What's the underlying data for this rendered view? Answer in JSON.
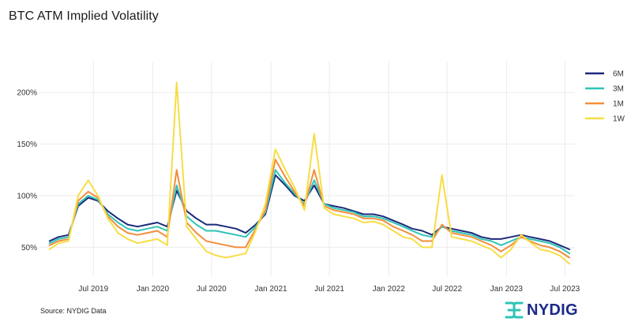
{
  "title": "BTC ATM Implied Volatility",
  "source_note": "Source: NYDIG Data",
  "logo": {
    "text": "NYDIG",
    "icon": "nydig-logo-icon"
  },
  "colors": {
    "6M": "#1b2a7a",
    "3M": "#2ec4b6",
    "1M": "#f28e3c",
    "1W": "#f7dd45",
    "grid": "#ebebeb",
    "logo_icon": "#2ec4b6",
    "logo_text": "#1b2a8a"
  },
  "chart_data": {
    "type": "line",
    "title": "BTC ATM Implied Volatility",
    "xlabel": "",
    "ylabel": "",
    "y_unit": "%",
    "ylim": [
      22,
      230
    ],
    "xlim": [
      "2019-01-15",
      "2023-08-01"
    ],
    "x_ticks": [
      {
        "label": "Jul 2019",
        "date": "2019-07-01"
      },
      {
        "label": "Jan 2020",
        "date": "2020-01-01"
      },
      {
        "label": "Jul 2020",
        "date": "2020-07-01"
      },
      {
        "label": "Jan 2021",
        "date": "2021-01-01"
      },
      {
        "label": "Jul 2021",
        "date": "2021-07-01"
      },
      {
        "label": "Jan 2022",
        "date": "2022-01-01"
      },
      {
        "label": "Jul 2022",
        "date": "2022-07-01"
      },
      {
        "label": "Jan 2023",
        "date": "2023-01-01"
      },
      {
        "label": "Jul 2023",
        "date": "2023-07-01"
      }
    ],
    "y_ticks": [
      {
        "label": "50%",
        "value": 50
      },
      {
        "label": "100%",
        "value": 100
      },
      {
        "label": "150%",
        "value": 150
      },
      {
        "label": "200%",
        "value": 200
      }
    ],
    "legend": {
      "position": "right",
      "entries": [
        "6M",
        "3M",
        "1M",
        "1W"
      ]
    },
    "x": [
      "2019-02",
      "2019-03",
      "2019-04",
      "2019-05",
      "2019-06",
      "2019-07",
      "2019-08",
      "2019-09",
      "2019-10",
      "2019-11",
      "2019-12",
      "2020-01",
      "2020-02",
      "2020-03",
      "2020-04",
      "2020-05",
      "2020-06",
      "2020-07",
      "2020-08",
      "2020-09",
      "2020-10",
      "2020-11",
      "2020-12",
      "2021-01",
      "2021-02",
      "2021-03",
      "2021-04",
      "2021-05",
      "2021-06",
      "2021-07",
      "2021-08",
      "2021-09",
      "2021-10",
      "2021-11",
      "2021-12",
      "2022-01",
      "2022-02",
      "2022-03",
      "2022-04",
      "2022-05",
      "2022-06",
      "2022-07",
      "2022-08",
      "2022-09",
      "2022-10",
      "2022-11",
      "2022-12",
      "2023-01",
      "2023-02",
      "2023-03",
      "2023-04",
      "2023-05",
      "2023-06",
      "2023-07"
    ],
    "series": [
      {
        "name": "6M",
        "values": [
          56,
          60,
          62,
          90,
          98,
          95,
          85,
          78,
          72,
          70,
          72,
          74,
          70,
          105,
          85,
          78,
          72,
          72,
          70,
          68,
          64,
          72,
          82,
          120,
          110,
          100,
          95,
          110,
          92,
          90,
          88,
          85,
          82,
          82,
          80,
          76,
          72,
          68,
          66,
          62,
          70,
          68,
          66,
          64,
          60,
          58,
          58,
          60,
          62,
          60,
          58,
          56,
          52,
          48
        ]
      },
      {
        "name": "3M",
        "values": [
          54,
          58,
          60,
          92,
          100,
          96,
          82,
          74,
          68,
          66,
          68,
          70,
          66,
          110,
          80,
          72,
          66,
          66,
          64,
          62,
          60,
          70,
          84,
          125,
          112,
          102,
          92,
          115,
          92,
          88,
          86,
          84,
          80,
          80,
          78,
          74,
          70,
          66,
          62,
          60,
          70,
          66,
          64,
          62,
          58,
          56,
          52,
          56,
          60,
          58,
          56,
          54,
          50,
          44
        ]
      },
      {
        "name": "1M",
        "values": [
          52,
          56,
          58,
          95,
          104,
          98,
          80,
          70,
          64,
          62,
          64,
          66,
          60,
          125,
          74,
          64,
          56,
          54,
          52,
          50,
          50,
          68,
          86,
          135,
          118,
          104,
          90,
          125,
          90,
          86,
          84,
          82,
          78,
          78,
          76,
          70,
          66,
          62,
          56,
          56,
          72,
          64,
          62,
          60,
          56,
          52,
          46,
          52,
          60,
          56,
          52,
          50,
          46,
          40
        ]
      },
      {
        "name": "1W",
        "values": [
          48,
          54,
          56,
          100,
          115,
          100,
          78,
          64,
          58,
          54,
          56,
          58,
          52,
          210,
          70,
          58,
          46,
          42,
          40,
          42,
          44,
          66,
          92,
          145,
          125,
          108,
          86,
          160,
          88,
          82,
          80,
          78,
          74,
          75,
          72,
          66,
          60,
          58,
          50,
          50,
          120,
          60,
          58,
          56,
          52,
          48,
          40,
          48,
          62,
          55,
          48,
          46,
          42,
          34
        ]
      }
    ]
  }
}
